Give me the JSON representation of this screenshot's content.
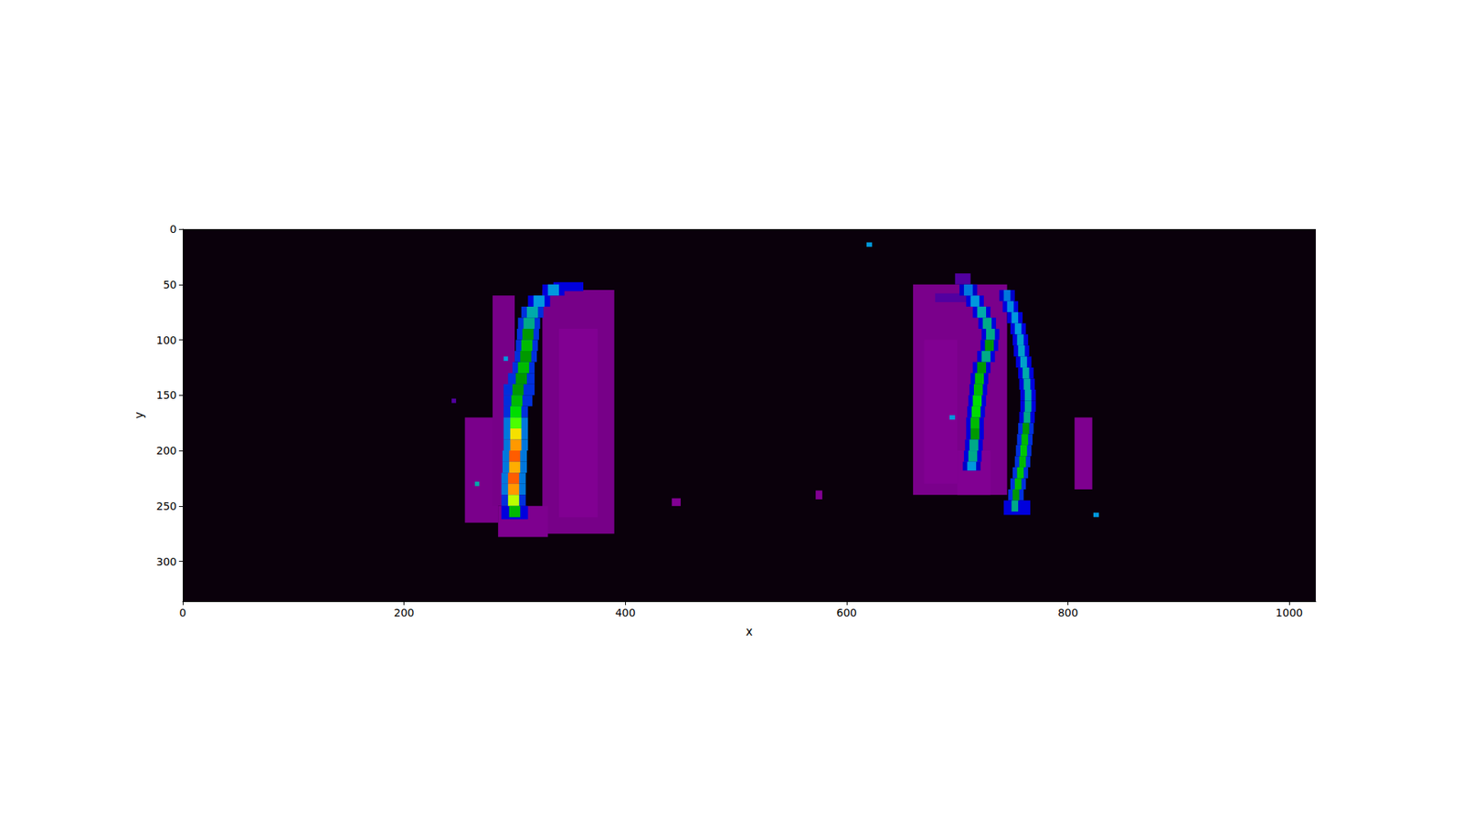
{
  "chart_data": {
    "type": "image",
    "x_label": "x",
    "y_label": "y",
    "xlim": [
      0,
      1024
    ],
    "ylim": [
      336,
      0
    ],
    "xticks": [
      0,
      200,
      400,
      600,
      800,
      1000
    ],
    "yticks": [
      0,
      50,
      100,
      150,
      200,
      250,
      300
    ],
    "clim": [
      0,
      1
    ],
    "cells": [
      [
        0,
        0,
        1024,
        336,
        0.004
      ],
      [
        255,
        170,
        285,
        265,
        0.06
      ],
      [
        325,
        55,
        390,
        275,
        0.05
      ],
      [
        340,
        90,
        375,
        260,
        0.08
      ],
      [
        285,
        250,
        330,
        278,
        0.07
      ],
      [
        280,
        60,
        300,
        250,
        0.05
      ],
      [
        660,
        50,
        745,
        240,
        0.06
      ],
      [
        670,
        100,
        700,
        230,
        0.08
      ],
      [
        700,
        200,
        730,
        240,
        0.08
      ],
      [
        806,
        170,
        822,
        235,
        0.07
      ],
      [
        680,
        58,
        715,
        66,
        0.12
      ],
      [
        335,
        48,
        362,
        56,
        0.2
      ],
      [
        325,
        50,
        345,
        60,
        0.2
      ],
      [
        312,
        60,
        332,
        70,
        0.2
      ],
      [
        306,
        70,
        326,
        80,
        0.22
      ],
      [
        303,
        80,
        323,
        90,
        0.22
      ],
      [
        302,
        90,
        322,
        100,
        0.22
      ],
      [
        301,
        100,
        321,
        110,
        0.22
      ],
      [
        300,
        110,
        320,
        120,
        0.22
      ],
      [
        298,
        120,
        318,
        130,
        0.22
      ],
      [
        294,
        130,
        318,
        140,
        0.22
      ],
      [
        290,
        140,
        318,
        150,
        0.22
      ],
      [
        290,
        150,
        316,
        160,
        0.22
      ],
      [
        290,
        160,
        312,
        170,
        0.22
      ],
      [
        290,
        170,
        312,
        180,
        0.25
      ],
      [
        290,
        180,
        312,
        190,
        0.25
      ],
      [
        290,
        190,
        312,
        200,
        0.25
      ],
      [
        289,
        200,
        311,
        210,
        0.25
      ],
      [
        289,
        210,
        311,
        220,
        0.25
      ],
      [
        288,
        220,
        310,
        230,
        0.25
      ],
      [
        288,
        230,
        310,
        240,
        0.25
      ],
      [
        288,
        240,
        310,
        250,
        0.22
      ],
      [
        288,
        250,
        312,
        262,
        0.2
      ],
      [
        330,
        50,
        340,
        60,
        0.3
      ],
      [
        317,
        60,
        327,
        70,
        0.3
      ],
      [
        311,
        70,
        321,
        80,
        0.35
      ],
      [
        308,
        80,
        318,
        90,
        0.4
      ],
      [
        307,
        90,
        317,
        100,
        0.45
      ],
      [
        306,
        100,
        316,
        110,
        0.5
      ],
      [
        305,
        110,
        315,
        120,
        0.45
      ],
      [
        303,
        120,
        313,
        130,
        0.5
      ],
      [
        301,
        130,
        311,
        140,
        0.45
      ],
      [
        298,
        140,
        308,
        150,
        0.45
      ],
      [
        297,
        150,
        307,
        160,
        0.5
      ],
      [
        296,
        160,
        306,
        170,
        0.55
      ],
      [
        296,
        170,
        306,
        180,
        0.62
      ],
      [
        296,
        180,
        306,
        190,
        0.72
      ],
      [
        296,
        190,
        306,
        200,
        0.8
      ],
      [
        295,
        200,
        305,
        210,
        0.82
      ],
      [
        295,
        210,
        305,
        220,
        0.78
      ],
      [
        294,
        220,
        304,
        230,
        0.82
      ],
      [
        294,
        230,
        304,
        240,
        0.8
      ],
      [
        294,
        240,
        304,
        250,
        0.65
      ],
      [
        295,
        250,
        305,
        260,
        0.5
      ],
      [
        698,
        40,
        712,
        50,
        0.12
      ],
      [
        702,
        50,
        718,
        60,
        0.18
      ],
      [
        708,
        60,
        724,
        70,
        0.2
      ],
      [
        714,
        70,
        730,
        80,
        0.2
      ],
      [
        719,
        80,
        735,
        90,
        0.2
      ],
      [
        722,
        90,
        738,
        100,
        0.2
      ],
      [
        721,
        100,
        737,
        110,
        0.2
      ],
      [
        718,
        110,
        734,
        120,
        0.2
      ],
      [
        714,
        120,
        730,
        130,
        0.2
      ],
      [
        712,
        130,
        728,
        140,
        0.2
      ],
      [
        711,
        140,
        727,
        150,
        0.2
      ],
      [
        710,
        150,
        726,
        160,
        0.2
      ],
      [
        709,
        160,
        725,
        170,
        0.2
      ],
      [
        708,
        170,
        724,
        180,
        0.2
      ],
      [
        708,
        180,
        724,
        190,
        0.2
      ],
      [
        707,
        190,
        723,
        200,
        0.2
      ],
      [
        706,
        200,
        722,
        210,
        0.2
      ],
      [
        705,
        210,
        721,
        218,
        0.18
      ],
      [
        706,
        50,
        714,
        60,
        0.25
      ],
      [
        712,
        60,
        720,
        70,
        0.3
      ],
      [
        718,
        70,
        726,
        80,
        0.35
      ],
      [
        723,
        80,
        731,
        90,
        0.4
      ],
      [
        726,
        90,
        734,
        100,
        0.4
      ],
      [
        725,
        100,
        733,
        110,
        0.45
      ],
      [
        722,
        110,
        730,
        120,
        0.4
      ],
      [
        718,
        120,
        726,
        130,
        0.45
      ],
      [
        716,
        130,
        724,
        140,
        0.5
      ],
      [
        715,
        140,
        723,
        150,
        0.5
      ],
      [
        714,
        150,
        722,
        160,
        0.55
      ],
      [
        713,
        160,
        721,
        170,
        0.55
      ],
      [
        712,
        170,
        720,
        180,
        0.5
      ],
      [
        712,
        180,
        720,
        190,
        0.45
      ],
      [
        711,
        190,
        719,
        200,
        0.4
      ],
      [
        710,
        200,
        718,
        210,
        0.4
      ],
      [
        709,
        210,
        717,
        218,
        0.3
      ],
      [
        738,
        55,
        752,
        65,
        0.18
      ],
      [
        741,
        65,
        755,
        75,
        0.2
      ],
      [
        745,
        75,
        759,
        85,
        0.2
      ],
      [
        748,
        85,
        762,
        95,
        0.2
      ],
      [
        750,
        95,
        764,
        105,
        0.2
      ],
      [
        751,
        105,
        765,
        115,
        0.2
      ],
      [
        753,
        115,
        767,
        125,
        0.2
      ],
      [
        755,
        125,
        769,
        135,
        0.2
      ],
      [
        756,
        135,
        770,
        145,
        0.2
      ],
      [
        757,
        145,
        771,
        155,
        0.2
      ],
      [
        757,
        155,
        771,
        165,
        0.2
      ],
      [
        756,
        165,
        770,
        175,
        0.2
      ],
      [
        755,
        175,
        769,
        185,
        0.22
      ],
      [
        754,
        185,
        768,
        195,
        0.22
      ],
      [
        753,
        195,
        767,
        205,
        0.22
      ],
      [
        752,
        205,
        766,
        215,
        0.22
      ],
      [
        750,
        215,
        764,
        225,
        0.22
      ],
      [
        748,
        225,
        762,
        235,
        0.22
      ],
      [
        746,
        235,
        760,
        245,
        0.22
      ],
      [
        742,
        245,
        766,
        258,
        0.2
      ],
      [
        742,
        55,
        748,
        65,
        0.25
      ],
      [
        745,
        65,
        751,
        75,
        0.28
      ],
      [
        749,
        75,
        755,
        85,
        0.3
      ],
      [
        752,
        85,
        758,
        95,
        0.3
      ],
      [
        754,
        95,
        760,
        105,
        0.32
      ],
      [
        755,
        105,
        761,
        115,
        0.32
      ],
      [
        757,
        115,
        763,
        125,
        0.32
      ],
      [
        759,
        125,
        765,
        135,
        0.35
      ],
      [
        760,
        135,
        766,
        145,
        0.35
      ],
      [
        761,
        145,
        767,
        155,
        0.35
      ],
      [
        761,
        155,
        767,
        165,
        0.38
      ],
      [
        760,
        165,
        766,
        175,
        0.4
      ],
      [
        759,
        175,
        765,
        185,
        0.45
      ],
      [
        758,
        185,
        764,
        195,
        0.5
      ],
      [
        757,
        195,
        763,
        205,
        0.52
      ],
      [
        756,
        205,
        762,
        215,
        0.5
      ],
      [
        754,
        215,
        760,
        225,
        0.52
      ],
      [
        752,
        225,
        758,
        235,
        0.5
      ],
      [
        750,
        235,
        756,
        245,
        0.45
      ],
      [
        749,
        245,
        755,
        255,
        0.4
      ],
      [
        618,
        12,
        623,
        16,
        0.3
      ],
      [
        290,
        115,
        294,
        119,
        0.3
      ],
      [
        243,
        153,
        247,
        157,
        0.12
      ],
      [
        264,
        228,
        268,
        232,
        0.35
      ],
      [
        823,
        256,
        828,
        260,
        0.3
      ],
      [
        572,
        236,
        578,
        244,
        0.08
      ],
      [
        442,
        243,
        450,
        250,
        0.08
      ],
      [
        693,
        168,
        698,
        172,
        0.3
      ]
    ]
  }
}
